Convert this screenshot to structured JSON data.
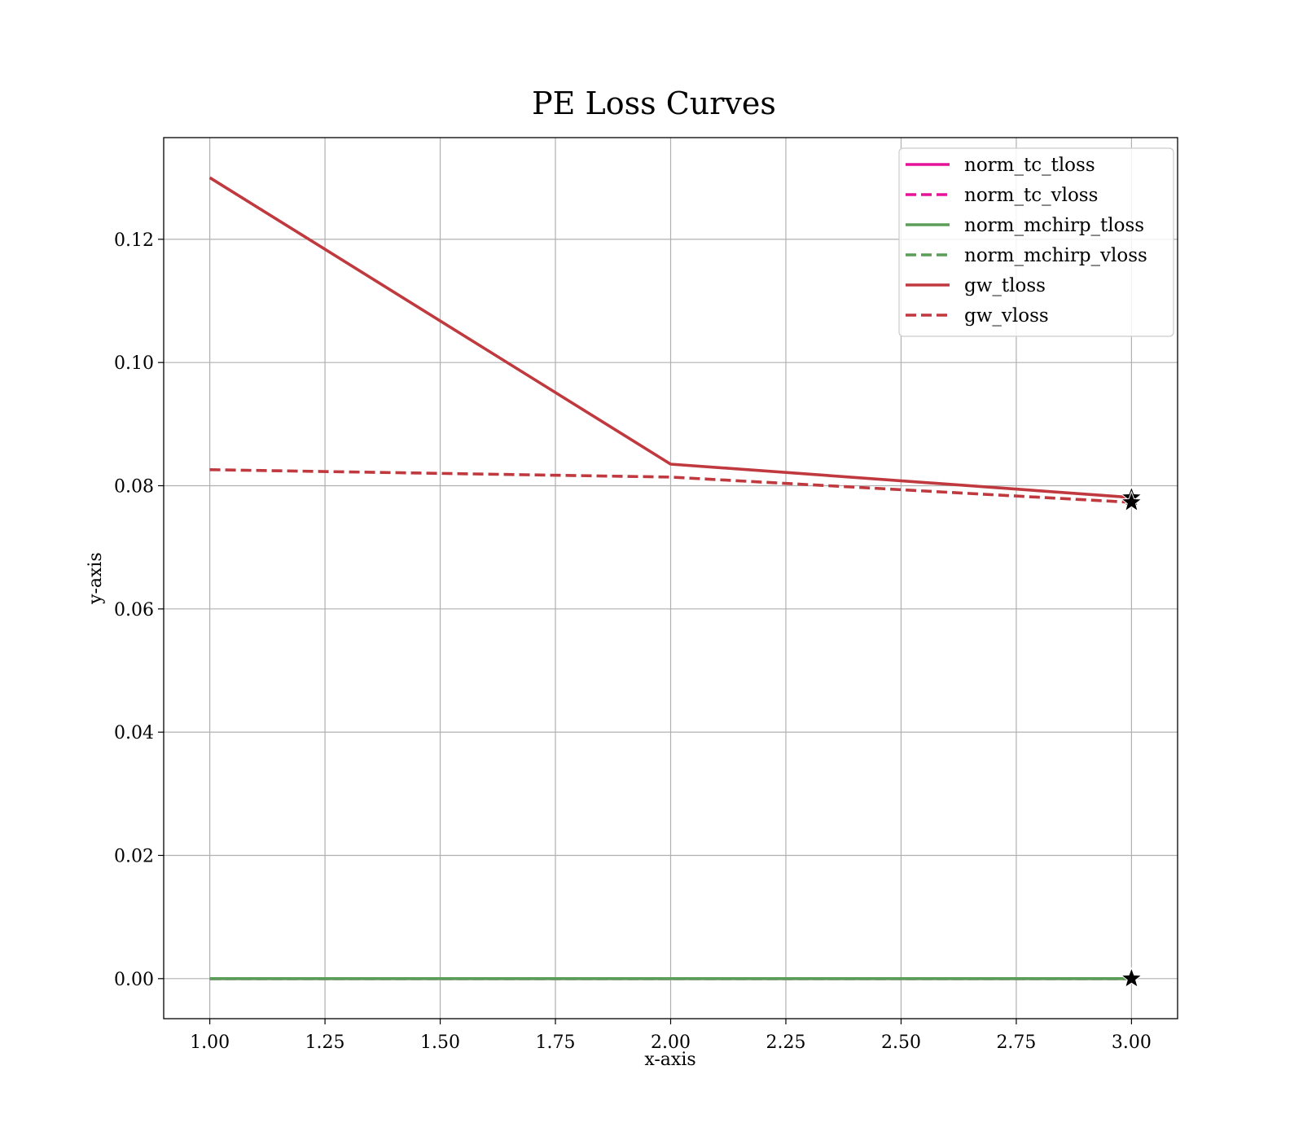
{
  "chart_data": {
    "type": "line",
    "title": "PE Loss Curves",
    "xlabel": "x-axis",
    "ylabel": "y-axis",
    "xlim": [
      0.9,
      3.1
    ],
    "ylim": [
      -0.0065,
      0.1365
    ],
    "xticks": [
      1.0,
      1.25,
      1.5,
      1.75,
      2.0,
      2.25,
      2.5,
      2.75,
      3.0
    ],
    "xtick_labels": [
      "1.00",
      "1.25",
      "1.50",
      "1.75",
      "2.00",
      "2.25",
      "2.50",
      "2.75",
      "3.00"
    ],
    "yticks": [
      0.0,
      0.02,
      0.04,
      0.06,
      0.08,
      0.1,
      0.12
    ],
    "ytick_labels": [
      "0.00",
      "0.02",
      "0.04",
      "0.06",
      "0.08",
      "0.10",
      "0.12"
    ],
    "grid": true,
    "legend_position": "top-right",
    "x": [
      1,
      2,
      3
    ],
    "series": [
      {
        "name": "norm_tc_tloss",
        "values": [
          0.0,
          0.0,
          0.0
        ],
        "color": "#e6129a",
        "style": "solid"
      },
      {
        "name": "norm_tc_vloss",
        "values": [
          0.0,
          0.0,
          0.0
        ],
        "color": "#e6129a",
        "style": "dashed"
      },
      {
        "name": "norm_mchirp_tloss",
        "values": [
          0.0,
          0.0,
          0.0
        ],
        "color": "#5a9e57",
        "style": "solid"
      },
      {
        "name": "norm_mchirp_vloss",
        "values": [
          0.0,
          0.0,
          0.0
        ],
        "color": "#5a9e57",
        "style": "dashed"
      },
      {
        "name": "gw_tloss",
        "values": [
          0.13,
          0.0835,
          0.0781
        ],
        "color": "#c0393f",
        "style": "solid"
      },
      {
        "name": "gw_vloss",
        "values": [
          0.0826,
          0.0814,
          0.0773
        ],
        "color": "#c0393f",
        "style": "dashed"
      }
    ],
    "markers": [
      {
        "x": 3,
        "y": 0.0781,
        "symbol": "star"
      },
      {
        "x": 3,
        "y": 0.0773,
        "symbol": "star"
      },
      {
        "x": 3,
        "y": 0.0,
        "symbol": "star"
      }
    ]
  }
}
